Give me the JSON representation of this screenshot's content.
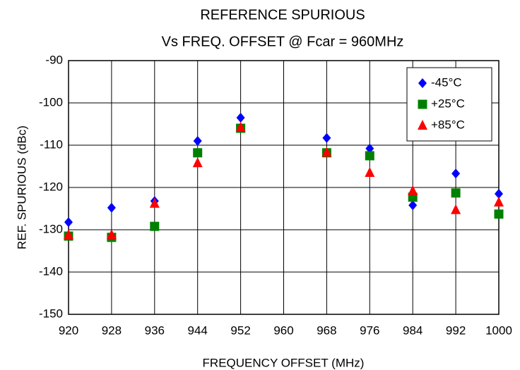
{
  "chart_data": {
    "type": "scatter",
    "title": "REFERENCE SPURIOUS",
    "subtitle": "Vs FREQ. OFFSET @ Fcar = 960MHz",
    "x_label": "FREQUENCY OFFSET (MHz)",
    "y_label": "REF. SPURIOUS (dBc)",
    "x": [
      920,
      928,
      936,
      944,
      952,
      968,
      976,
      984,
      992,
      1000
    ],
    "series": [
      {
        "name": "-45°C",
        "color": "#0000ff",
        "marker": "diamond",
        "values": [
          -128.2,
          -124.8,
          -123.2,
          -109.0,
          -103.5,
          -108.3,
          -110.8,
          -124.2,
          -116.7,
          -121.5
        ]
      },
      {
        "name": "+25°C",
        "color": "#008000",
        "marker": "square",
        "values": [
          -131.5,
          -131.8,
          -129.2,
          -111.8,
          -106.0,
          -111.8,
          -112.5,
          -122.3,
          -121.3,
          -126.3
        ]
      },
      {
        "name": "+85°C",
        "color": "#ff0000",
        "marker": "triangle",
        "values": [
          -131.2,
          -131.2,
          -123.8,
          -114.2,
          -105.8,
          -111.7,
          -116.5,
          -120.8,
          -125.3,
          -123.5
        ]
      }
    ],
    "xlim": [
      920,
      1000
    ],
    "xticks": [
      920,
      928,
      936,
      944,
      952,
      960,
      968,
      976,
      984,
      992,
      1000
    ],
    "ylim": [
      -150,
      -90
    ],
    "yticks": [
      -150,
      -140,
      -130,
      -120,
      -110,
      -100,
      -90
    ],
    "grid": true,
    "legend_position": "top-right"
  }
}
